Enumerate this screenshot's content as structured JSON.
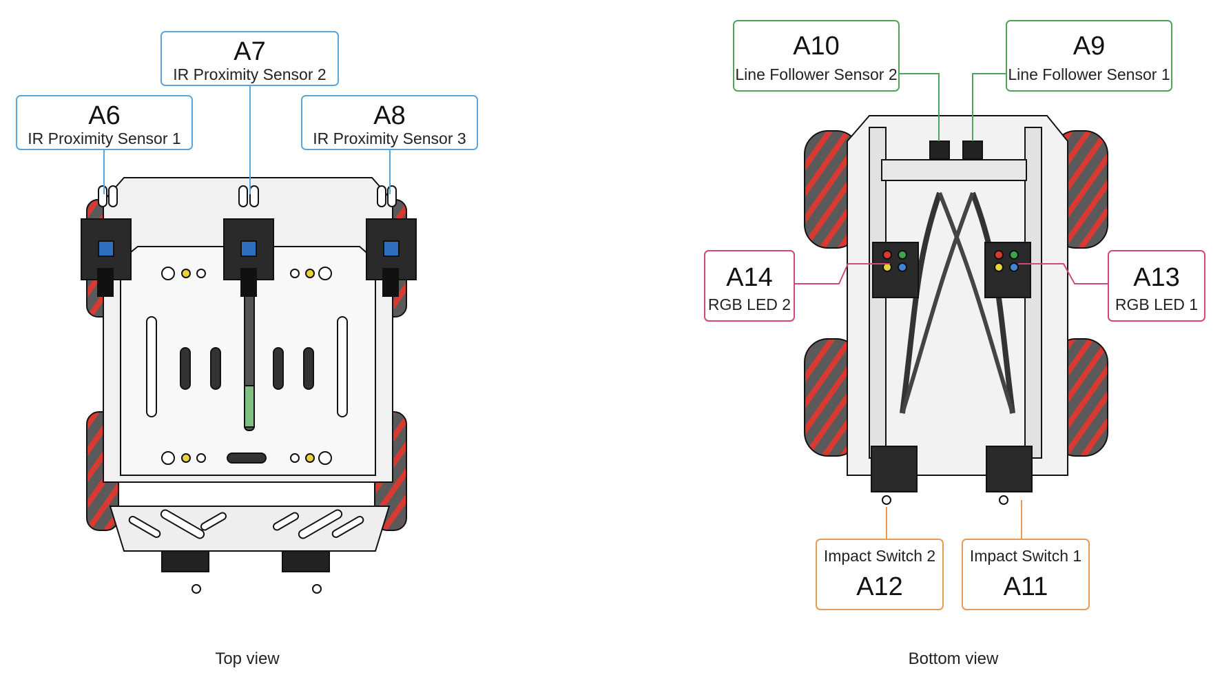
{
  "top_view": {
    "caption": "Top view",
    "labels": [
      {
        "code": "A6",
        "name": "IR Proximity Sensor 1"
      },
      {
        "code": "A7",
        "name": "IR Proximity Sensor 2"
      },
      {
        "code": "A8",
        "name": "IR Proximity Sensor 3"
      }
    ]
  },
  "bottom_view": {
    "caption": "Bottom view",
    "labels": [
      {
        "code": "A10",
        "name": "Line Follower Sensor 2"
      },
      {
        "code": "A9",
        "name": "Line Follower Sensor 1"
      },
      {
        "code": "A14",
        "name": "RGB LED 2"
      },
      {
        "code": "A13",
        "name": "RGB LED 1"
      },
      {
        "code": "A12",
        "name": "Impact Switch 2"
      },
      {
        "code": "A11",
        "name": "Impact Switch 1"
      }
    ]
  },
  "colors": {
    "ir_sensor": "#5aa6dc",
    "line_follower": "#4ea25e",
    "rgb_led": "#d2457f",
    "impact_switch": "#e69a55",
    "wheel": "#d83a32",
    "chassis": "#eeeeee"
  }
}
